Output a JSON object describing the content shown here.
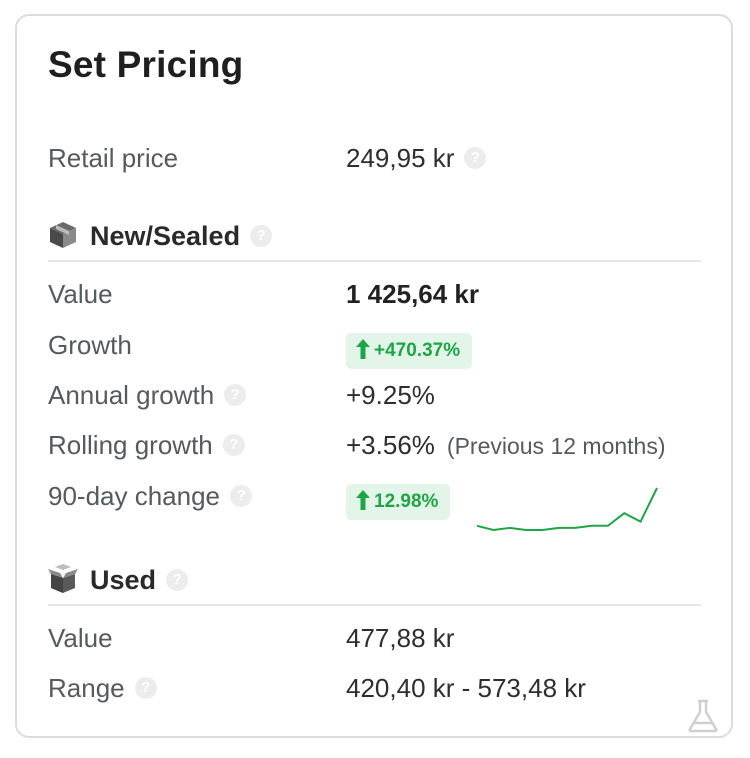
{
  "title": "Set Pricing",
  "retail": {
    "label": "Retail price",
    "value": "249,95 kr",
    "help": "?"
  },
  "new_sealed": {
    "heading": "New/Sealed",
    "icon": "sealed-box-icon",
    "help": "?",
    "value_label": "Value",
    "value": "1 425,64 kr",
    "growth_label": "Growth",
    "growth": "+470.37%",
    "annual_label": "Annual growth",
    "annual": "+9.25%",
    "rolling_label": "Rolling growth",
    "rolling": "+3.56%",
    "rolling_note": "(Previous 12 months)",
    "change90_label": "90-day change",
    "change90": "12.98%",
    "sparkline_trend": [
      10,
      8,
      9,
      8,
      8,
      9,
      9,
      10,
      10,
      16,
      12,
      28
    ]
  },
  "used": {
    "heading": "Used",
    "icon": "open-box-icon",
    "help": "?",
    "value_label": "Value",
    "value": "477,88 kr",
    "range_label": "Range",
    "range": "420,40 kr - 573,48 kr"
  },
  "colors": {
    "positive": "#1ea548",
    "positive_bg": "#e3f5e8",
    "border": "#dcdcdc"
  },
  "footer_icon": "flask-icon"
}
